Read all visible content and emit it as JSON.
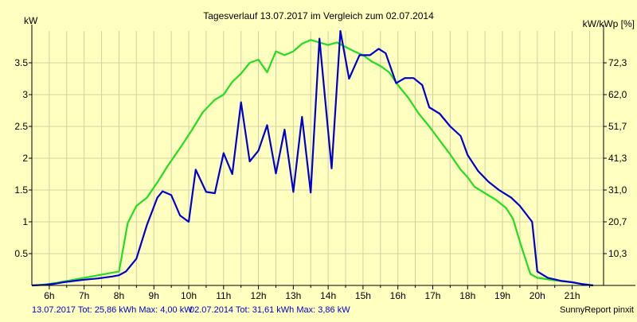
{
  "chart_data": {
    "type": "line",
    "title": "Tagesverlauf 13.07.2017 im Vergleich zum 02.07.2014",
    "ylabel": "kW",
    "y2label": "kW/kWp [%]",
    "xlim": [
      5.5,
      21.9
    ],
    "ylim": [
      0,
      4.0
    ],
    "x_ticks": [
      6,
      7,
      8,
      9,
      10,
      11,
      12,
      13,
      14,
      15,
      16,
      17,
      18,
      19,
      20,
      21
    ],
    "x_tick_labels": [
      "6h",
      "7h",
      "8h",
      "9h",
      "10h",
      "11h",
      "12h",
      "13h",
      "14h",
      "15h",
      "16h",
      "17h",
      "18h",
      "19h",
      "20h",
      "21h"
    ],
    "y_ticks": [
      0.5,
      1,
      1.5,
      2,
      2.5,
      3,
      3.5
    ],
    "y_tick_labels": [
      "0.5",
      "1",
      "1.5",
      "2",
      "2.5",
      "3",
      "3.5"
    ],
    "y2_ticks": [
      0.5,
      1,
      1.5,
      2,
      2.5,
      3,
      3.5
    ],
    "y2_tick_labels": [
      "10,3",
      "20,7",
      "31,0",
      "41,3",
      "51,7",
      "62,0",
      "72,3"
    ],
    "grid": true,
    "colors": {
      "background": "#ffffc0",
      "grid": "#d0d0a0",
      "axis": "#000000"
    },
    "series": [
      {
        "name": "13.07.2017 Tot: 25,86 kWh Max: 4,00 kW",
        "color": "#0000cc",
        "x": [
          5.5,
          5.9,
          6.2,
          6.4,
          6.7,
          7.0,
          7.4,
          7.8,
          8.0,
          8.2,
          8.5,
          8.8,
          9.1,
          9.25,
          9.5,
          9.75,
          10.0,
          10.2,
          10.5,
          10.75,
          11.0,
          11.25,
          11.5,
          11.75,
          12.0,
          12.25,
          12.5,
          12.75,
          13.0,
          13.25,
          13.5,
          13.75,
          14.1,
          14.35,
          14.6,
          14.9,
          15.2,
          15.45,
          15.65,
          15.95,
          16.2,
          16.45,
          16.7,
          16.9,
          17.2,
          17.5,
          17.8,
          18.0,
          18.3,
          18.6,
          18.9,
          19.25,
          19.5,
          19.85,
          20.0,
          20.3,
          20.7,
          21.0,
          21.3,
          21.6
        ],
        "y": [
          0,
          0.01,
          0.03,
          0.05,
          0.07,
          0.09,
          0.11,
          0.14,
          0.16,
          0.22,
          0.42,
          0.95,
          1.38,
          1.48,
          1.42,
          1.1,
          1.0,
          1.82,
          1.47,
          1.45,
          2.08,
          1.75,
          2.88,
          1.95,
          2.12,
          2.52,
          1.76,
          2.45,
          1.47,
          2.65,
          1.46,
          3.88,
          1.84,
          4.0,
          3.25,
          3.62,
          3.62,
          3.72,
          3.65,
          3.18,
          3.26,
          3.26,
          3.15,
          2.8,
          2.7,
          2.5,
          2.35,
          2.05,
          1.8,
          1.63,
          1.5,
          1.38,
          1.25,
          1.0,
          0.22,
          0.12,
          0.07,
          0.05,
          0.02,
          0
        ]
      },
      {
        "name": "02.07.2014 Tot: 31,61 kWh Max: 3,86 kW",
        "color": "#22dd22",
        "x": [
          5.5,
          5.8,
          6.2,
          6.6,
          7.0,
          7.5,
          8.0,
          8.25,
          8.5,
          8.8,
          9.1,
          9.4,
          9.8,
          10.1,
          10.4,
          10.75,
          11.0,
          11.25,
          11.5,
          11.75,
          12.0,
          12.25,
          12.5,
          12.75,
          13.0,
          13.25,
          13.5,
          13.75,
          14.0,
          14.25,
          14.5,
          14.75,
          15.0,
          15.25,
          15.5,
          15.75,
          16.0,
          16.3,
          16.6,
          16.9,
          17.2,
          17.5,
          17.8,
          18.0,
          18.2,
          18.5,
          18.8,
          19.1,
          19.3,
          19.55,
          19.8,
          20.0,
          20.5,
          21.0,
          21.3,
          21.6
        ],
        "y": [
          0,
          0.01,
          0.04,
          0.08,
          0.12,
          0.17,
          0.22,
          0.98,
          1.25,
          1.38,
          1.62,
          1.88,
          2.2,
          2.45,
          2.72,
          2.92,
          3.0,
          3.2,
          3.33,
          3.5,
          3.55,
          3.35,
          3.68,
          3.62,
          3.68,
          3.8,
          3.86,
          3.82,
          3.78,
          3.82,
          3.75,
          3.68,
          3.62,
          3.52,
          3.45,
          3.35,
          3.15,
          2.95,
          2.7,
          2.5,
          2.28,
          2.06,
          1.82,
          1.7,
          1.55,
          1.45,
          1.35,
          1.22,
          1.05,
          0.6,
          0.18,
          0.12,
          0.08,
          0.05,
          0.02,
          0
        ]
      }
    ]
  },
  "footer": {
    "legend_1": "13.07.2017 Tot: 25,86 kWh Max: 4,00 kW",
    "legend_2": "02.07.2014 Tot: 31,61 kWh Max: 3,86 kW",
    "credit": "SunnyReport pinxit"
  }
}
